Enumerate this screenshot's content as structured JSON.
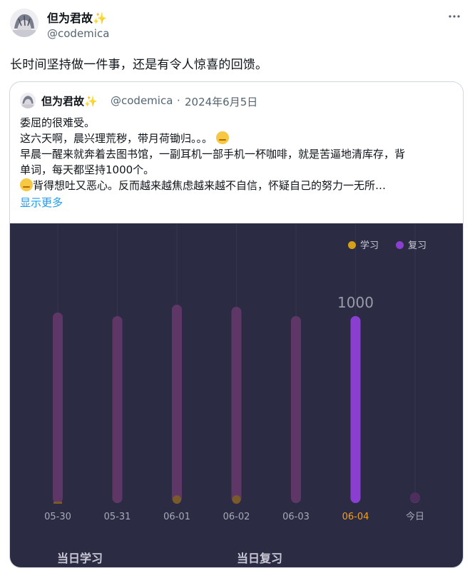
{
  "tweet": {
    "author_name": "但为君故✨",
    "author_handle": "@codemica",
    "text": "长时间坚持做一件事，还是有令人惊喜的回馈。"
  },
  "quoted": {
    "author_name": "但为君故✨",
    "author_handle": "@codemica",
    "separator": "·",
    "date": "2024年6月5日",
    "lines": {
      "l1": "委屈的很难受。",
      "l2": "这六天啊，晨兴理荒秽，带月荷锄归。。。",
      "l3": "早晨一醒来就奔着去图书馆，一副耳机一部手机一杯咖啡，就是苦逼地清库存，背",
      "l4": "单词，每天都坚持1000个。",
      "l5": "背得想吐又恶心。反而越来越焦虑越来越不自信，怀疑自己的努力一无所…"
    },
    "show_more": "显示更多"
  },
  "chart_data": {
    "type": "bar",
    "categories": [
      "05-30",
      "05-31",
      "06-01",
      "06-02",
      "06-03",
      "06-04",
      "今日"
    ],
    "series": [
      {
        "name": "学习",
        "color": "#d4a017",
        "values": [
          0,
          0,
          0,
          0,
          0,
          0,
          0
        ]
      },
      {
        "name": "复习",
        "color": "#8a3fd1",
        "values": [
          0,
          0,
          0,
          0,
          0,
          1000,
          0
        ]
      }
    ],
    "data_labels": {
      "06-04": "1000"
    },
    "highlight_category": "06-04",
    "legend_position": "top-right",
    "bottom_labels": [
      "当日学习",
      "当日复习"
    ],
    "colors": {
      "background": "#2b2c44",
      "track": "#5e3766",
      "highlight_tick": "#f0a020"
    }
  }
}
